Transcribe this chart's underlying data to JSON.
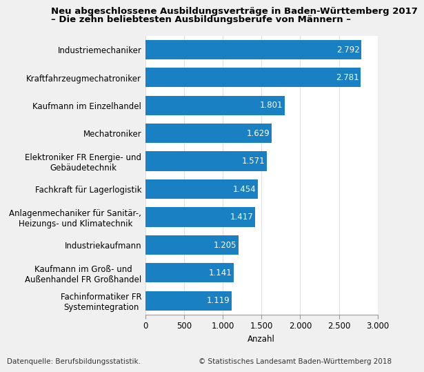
{
  "title_line1": "Neu abgeschlossene Ausbildungsverträge in Baden-Württemberg 2017",
  "title_line2": "– Die zehn beliebtesten Ausbildungsberufe von Männern –",
  "categories": [
    "Fachinformatiker FR\nSystemintegration",
    "Kaufmann im Groß- und\nAußenhandel FR Großhandel",
    "Industriekaufmann",
    "Anlagenmechaniker für Sanitär-,\nHeizungs- und Klimatechnik",
    "Fachkraft für Lagerlogistik",
    "Elektroniker FR Energie- und\nGebäudetechnik",
    "Mechatroniker",
    "Kaufmann im Einzelhandel",
    "Kraftfahrzeugmechatroniker",
    "Industriemechaniker"
  ],
  "values": [
    1119,
    1141,
    1205,
    1417,
    1454,
    1571,
    1629,
    1801,
    2781,
    2792
  ],
  "bar_color": "#1a80c4",
  "xlabel": "Anzahl",
  "xlim": [
    0,
    3000
  ],
  "xticks": [
    0,
    500,
    1000,
    1500,
    2000,
    2500,
    3000
  ],
  "xtick_labels": [
    "0",
    "500",
    "1.000",
    "1.500",
    "2.000",
    "2.500",
    "3.000"
  ],
  "value_labels": [
    "1.119",
    "1.141",
    "1.205",
    "1.417",
    "1.454",
    "1.571",
    "1.629",
    "1.801",
    "2.781",
    "2.792"
  ],
  "footer_left": "Datenquelle: Berufsbildungsstatistik.",
  "footer_right": "© Statistisches Landesamt Baden-Württemberg 2018",
  "fig_bg_color": "#f0f0f0",
  "plot_bg_color": "#ffffff",
  "grid_color": "#e0e0e0",
  "title_fontsize": 9.5,
  "label_fontsize": 8.5,
  "value_fontsize": 8.5,
  "tick_fontsize": 8.5,
  "footer_fontsize": 7.5
}
